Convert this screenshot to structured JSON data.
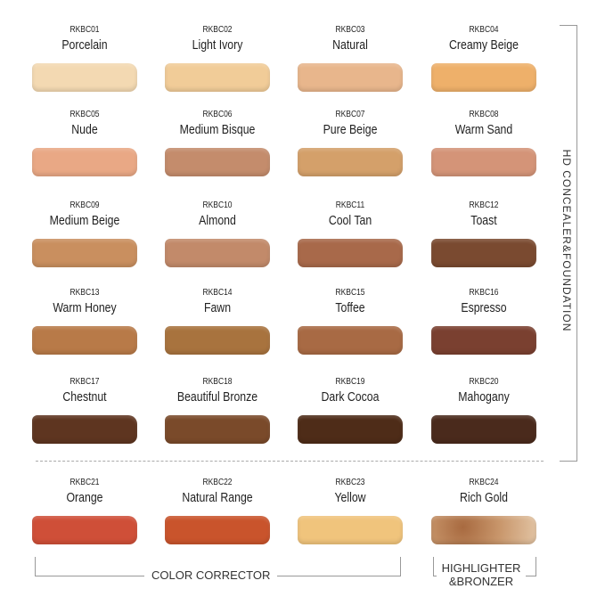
{
  "swatches": [
    {
      "code": "RKBC01",
      "name": "Porcelain",
      "color": "#f3d9b2"
    },
    {
      "code": "RKBC02",
      "name": "Light Ivory",
      "color": "#f1cc98"
    },
    {
      "code": "RKBC03",
      "name": "Natural",
      "color": "#e8b68c"
    },
    {
      "code": "RKBC04",
      "name": "Creamy Beige",
      "color": "#eeb06a"
    },
    {
      "code": "RKBC05",
      "name": "Nude",
      "color": "#e9a885"
    },
    {
      "code": "RKBC06",
      "name": "Medium Bisque",
      "color": "#c48c6c"
    },
    {
      "code": "RKBC07",
      "name": "Pure Beige",
      "color": "#d4a06a"
    },
    {
      "code": "RKBC08",
      "name": "Warm Sand",
      "color": "#d49478"
    },
    {
      "code": "RKBC09",
      "name": "Medium Beige",
      "color": "#c98f5f"
    },
    {
      "code": "RKBC10",
      "name": "Almond",
      "color": "#c28a6a"
    },
    {
      "code": "RKBC11",
      "name": "Cool Tan",
      "color": "#a8694a"
    },
    {
      "code": "RKBC12",
      "name": "Toast",
      "color": "#7a4a30"
    },
    {
      "code": "RKBC13",
      "name": "Warm Honey",
      "color": "#b87a48"
    },
    {
      "code": "RKBC14",
      "name": "Fawn",
      "color": "#a8733e"
    },
    {
      "code": "RKBC15",
      "name": "Toffee",
      "color": "#a86a44"
    },
    {
      "code": "RKBC16",
      "name": "Espresso",
      "color": "#7a4030"
    },
    {
      "code": "RKBC17",
      "name": "Chestnut",
      "color": "#5e3520"
    },
    {
      "code": "RKBC18",
      "name": "Beautiful Bronze",
      "color": "#7a4a2a"
    },
    {
      "code": "RKBC19",
      "name": "Dark Cocoa",
      "color": "#4e2c18"
    },
    {
      "code": "RKBC20",
      "name": "Mahogany",
      "color": "#4a2a1c"
    },
    {
      "code": "RKBC21",
      "name": "Orange",
      "color": "#cf4f38"
    },
    {
      "code": "RKBC22",
      "name": "Natural Range",
      "color": "#c9542c"
    },
    {
      "code": "RKBC23",
      "name": "Yellow",
      "color": "#f0c47c"
    },
    {
      "code": "RKBC24",
      "name": "Rich Gold",
      "color": "#c08a60"
    }
  ],
  "labels": {
    "foundation": "HD CONCEALER&FOUNDATION",
    "corrector": "COLOR CORRECTOR",
    "highlighter_line1": "HIGHLIGHTER",
    "highlighter_line2": "&BRONZER"
  }
}
